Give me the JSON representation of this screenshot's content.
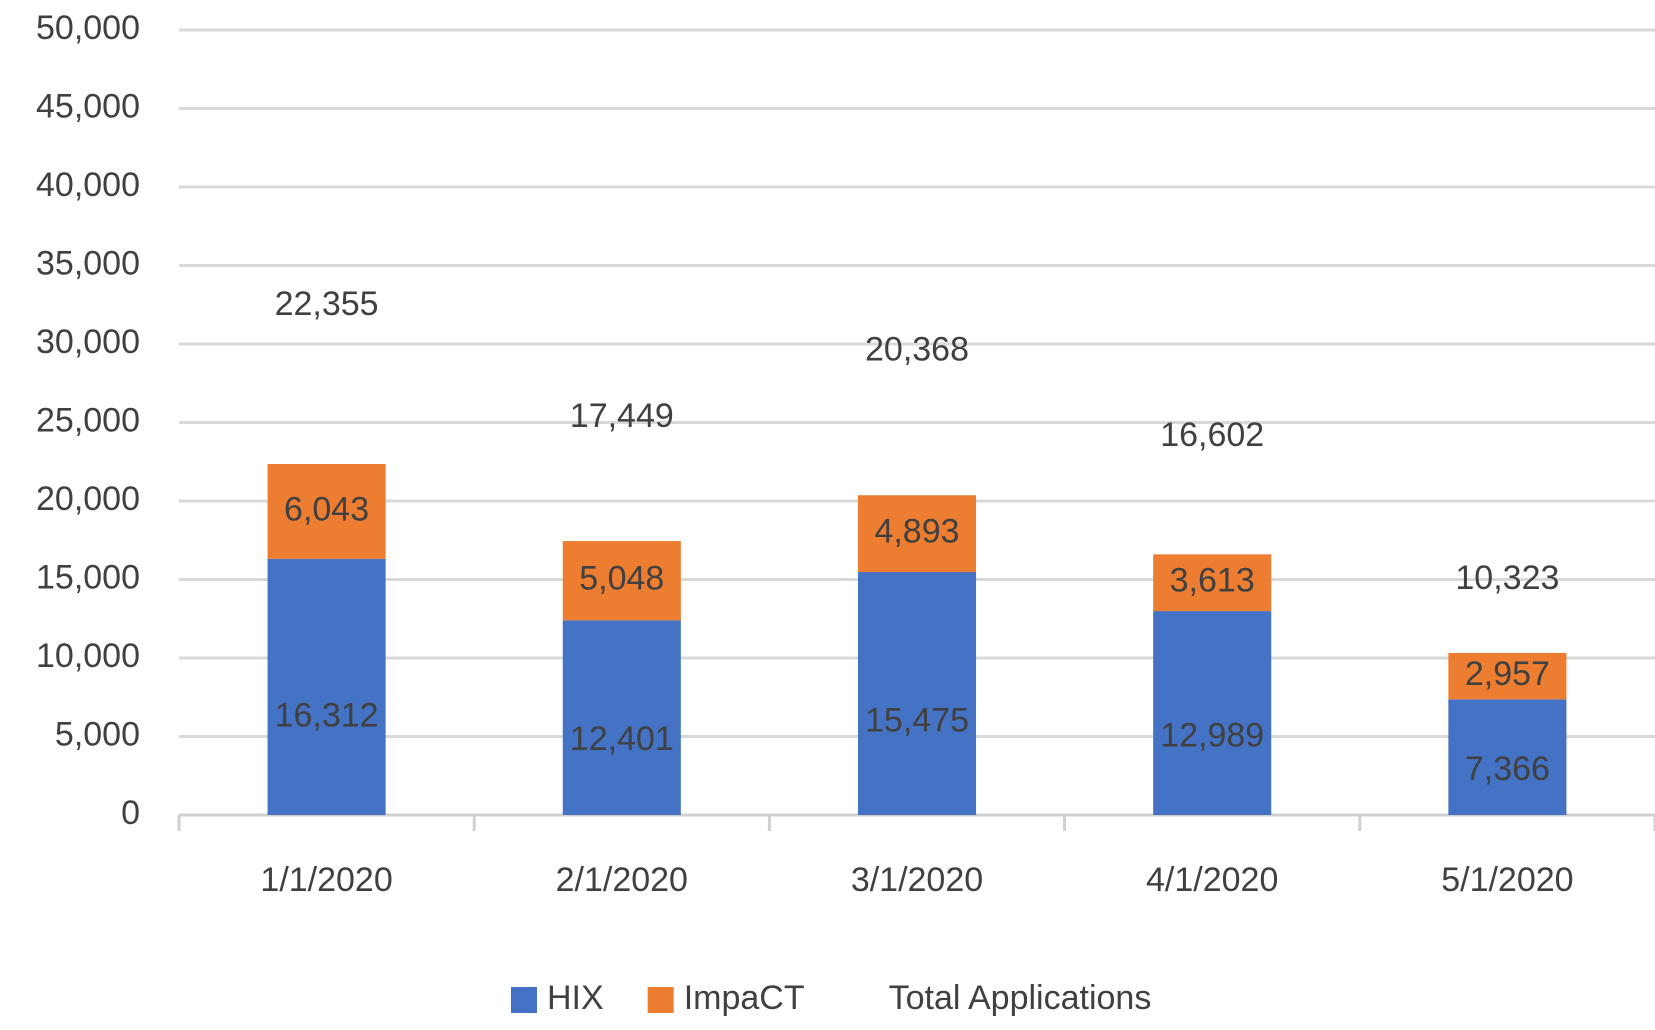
{
  "chart_data": {
    "type": "stacked_bar",
    "categories": [
      "1/1/2020",
      "2/1/2020",
      "3/1/2020",
      "4/1/2020",
      "5/1/2020"
    ],
    "series": [
      {
        "name": "HIX",
        "color": "#4472c4",
        "values": [
          16312,
          12401,
          15475,
          12989,
          7366
        ],
        "value_labels": [
          "16,312",
          "12,401",
          "15,475",
          "12,989",
          "7,366"
        ]
      },
      {
        "name": "ImpaCT",
        "color": "#ed7d31",
        "values": [
          6043,
          5048,
          4893,
          3613,
          2957
        ],
        "value_labels": [
          "6,043",
          "5,048",
          "4,893",
          "3,613",
          "2,957"
        ]
      },
      {
        "name": "Total Applications",
        "values": [
          22355,
          17449,
          20368,
          16602,
          10323
        ],
        "value_labels": [
          "22,355",
          "17,449",
          "20,368",
          "16,602",
          "10,323"
        ]
      }
    ],
    "ylim": [
      0,
      50000
    ],
    "yticks": [
      0,
      {
        "value": 5000,
        "label": "5,000"
      },
      {
        "value": 10000,
        "label": "10,000"
      },
      {
        "value": 15000,
        "label": "15,000"
      },
      {
        "value": 20000,
        "label": "20,000"
      },
      {
        "value": 25000,
        "label": "25,000"
      },
      {
        "value": 30000,
        "label": "30,000"
      },
      {
        "value": 35000,
        "label": "35,000"
      },
      {
        "value": 40000,
        "label": "40,000"
      },
      {
        "value": 45000,
        "label": "45,000"
      },
      {
        "value": 50000,
        "label": "50,000"
      }
    ],
    "grid": true,
    "legend": "bottom"
  }
}
